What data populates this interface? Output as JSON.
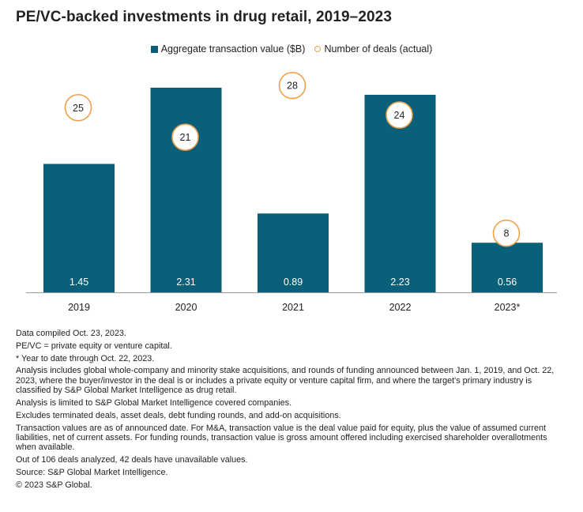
{
  "title": "PE/VC-backed investments in drug retail, 2019–2023",
  "legend": {
    "bar_label": "Aggregate transaction value ($B)",
    "circle_label": "Number of deals (actual)"
  },
  "colors": {
    "bar": "#0b6079",
    "circle_stroke": "#f0a04b",
    "bar_label": "#ffffff",
    "axis": "#9a9a9a"
  },
  "chart_data": {
    "type": "bar",
    "title": "PE/VC-backed investments in drug retail, 2019–2023",
    "categories": [
      "2019",
      "2020",
      "2021",
      "2022",
      "2023*"
    ],
    "series": [
      {
        "name": "Aggregate transaction value ($B)",
        "type": "bar",
        "values": [
          1.45,
          2.31,
          0.89,
          2.23,
          0.56
        ]
      },
      {
        "name": "Number of deals (actual)",
        "type": "marker",
        "values": [
          25,
          21,
          28,
          24,
          8
        ]
      }
    ],
    "ylim_value": [
      0,
      2.31
    ],
    "ylim_deals": [
      0,
      31
    ],
    "grid": false,
    "legend_position": "top-center"
  },
  "notes": [
    "Data compiled Oct. 23, 2023.",
    "PE/VC = private equity or venture capital.",
    "* Year to date through Oct. 22, 2023.",
    "Analysis includes global whole-company and minority stake acquisitions, and rounds of funding announced between Jan. 1, 2019, and Oct. 22, 2023, where the buyer/investor in the deal is or includes a private equity or venture capital firm, and where the target's primary industry is classified by S&P Global Market Intelligence as drug retail.",
    "Analysis is limited to S&P Global Market Intelligence covered companies.",
    "Excludes terminated deals, asset deals, debt funding rounds,  and add-on acquisitions.",
    "Transaction values are as of announced date. For M&A, transaction value is the deal value paid for equity, plus the value of assumed current liabilities, net of current assets. For funding rounds, transaction value is gross amount offered including exercised shareholder overallotments when available.",
    "Out of 106 deals analyzed, 42 deals have unavailable values.",
    "Source: S&P Global Market Intelligence.",
    "© 2023 S&P Global."
  ]
}
